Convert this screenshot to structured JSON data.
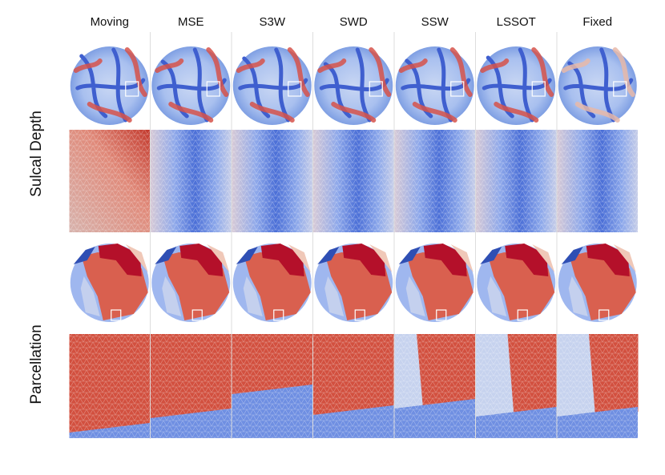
{
  "columns": [
    "Moving",
    "MSE",
    "S3W",
    "SWD",
    "SSW",
    "LSSOT",
    "Fixed"
  ],
  "rows": [
    "Sulcal Depth",
    "Parcellation"
  ]
}
